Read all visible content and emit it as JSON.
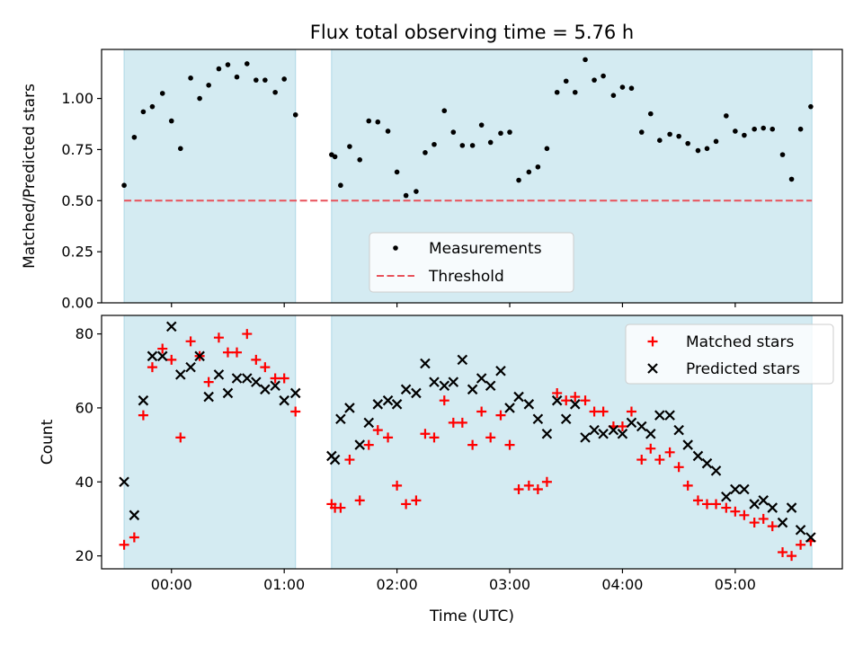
{
  "title": "Flux total observing time = 5.76 h",
  "colors": {
    "shade": "#add8e6",
    "threshold": "#e8515a",
    "matched": "#ff0000",
    "predicted": "#000000",
    "measurement": "#000000"
  },
  "x_axis": {
    "label": "Time (UTC)",
    "range_hours": [
      -0.62,
      5.95
    ],
    "ticks": [
      0,
      1,
      2,
      3,
      4,
      5
    ],
    "tick_labels": [
      "00:00",
      "01:00",
      "02:00",
      "03:00",
      "04:00",
      "05:00"
    ]
  },
  "shaded_intervals_hours": [
    [
      -0.42,
      1.1
    ],
    [
      1.42,
      5.68
    ]
  ],
  "chart_data": [
    {
      "type": "scatter",
      "title": "Flux total observing time = 5.76 h",
      "xlabel": "Time (UTC)",
      "ylabel": "Matched/Predicted stars",
      "ylim": [
        0,
        1.24
      ],
      "yticks": [
        0,
        0.25,
        0.5,
        0.75,
        1.0
      ],
      "ytick_labels": [
        "0.00",
        "0.25",
        "0.50",
        "0.75",
        "1.00"
      ],
      "grid": false,
      "legend": {
        "placement": "lower-center",
        "entries": [
          "Measurements",
          "Threshold"
        ]
      },
      "threshold": {
        "name": "Threshold",
        "value": 0.5,
        "style": "dashed"
      },
      "series": [
        {
          "name": "Measurements",
          "points": [
            [
              -0.42,
              0.575
            ],
            [
              -0.33,
              0.81
            ],
            [
              -0.25,
              0.935
            ],
            [
              -0.17,
              0.96
            ],
            [
              -0.08,
              1.025
            ],
            [
              0.0,
              0.89
            ],
            [
              0.08,
              0.755
            ],
            [
              0.17,
              1.1
            ],
            [
              0.25,
              1.0
            ],
            [
              0.33,
              1.065
            ],
            [
              0.42,
              1.145
            ],
            [
              0.5,
              1.165
            ],
            [
              0.58,
              1.105
            ],
            [
              0.67,
              1.17
            ],
            [
              0.75,
              1.09
            ],
            [
              0.83,
              1.09
            ],
            [
              0.92,
              1.03
            ],
            [
              1.0,
              1.095
            ],
            [
              1.1,
              0.92
            ],
            [
              1.42,
              0.725
            ],
            [
              1.45,
              0.715
            ],
            [
              1.5,
              0.575
            ],
            [
              1.58,
              0.765
            ],
            [
              1.67,
              0.7
            ],
            [
              1.75,
              0.89
            ],
            [
              1.83,
              0.885
            ],
            [
              1.92,
              0.84
            ],
            [
              2.0,
              0.64
            ],
            [
              2.08,
              0.525
            ],
            [
              2.17,
              0.545
            ],
            [
              2.25,
              0.735
            ],
            [
              2.33,
              0.775
            ],
            [
              2.42,
              0.94
            ],
            [
              2.5,
              0.835
            ],
            [
              2.58,
              0.77
            ],
            [
              2.67,
              0.77
            ],
            [
              2.75,
              0.87
            ],
            [
              2.83,
              0.785
            ],
            [
              2.92,
              0.83
            ],
            [
              3.0,
              0.835
            ],
            [
              3.08,
              0.6
            ],
            [
              3.17,
              0.64
            ],
            [
              3.25,
              0.665
            ],
            [
              3.33,
              0.755
            ],
            [
              3.42,
              1.03
            ],
            [
              3.5,
              1.085
            ],
            [
              3.58,
              1.03
            ],
            [
              3.67,
              1.19
            ],
            [
              3.75,
              1.09
            ],
            [
              3.83,
              1.11
            ],
            [
              3.92,
              1.015
            ],
            [
              4.0,
              1.055
            ],
            [
              4.08,
              1.05
            ],
            [
              4.17,
              0.835
            ],
            [
              4.25,
              0.925
            ],
            [
              4.33,
              0.795
            ],
            [
              4.42,
              0.825
            ],
            [
              4.5,
              0.815
            ],
            [
              4.58,
              0.78
            ],
            [
              4.67,
              0.745
            ],
            [
              4.75,
              0.755
            ],
            [
              4.83,
              0.79
            ],
            [
              4.92,
              0.915
            ],
            [
              5.0,
              0.84
            ],
            [
              5.08,
              0.82
            ],
            [
              5.17,
              0.85
            ],
            [
              5.25,
              0.855
            ],
            [
              5.33,
              0.85
            ],
            [
              5.42,
              0.725
            ],
            [
              5.5,
              0.605
            ],
            [
              5.58,
              0.85
            ],
            [
              5.67,
              0.96
            ]
          ]
        }
      ]
    },
    {
      "type": "scatter",
      "xlabel": "Time (UTC)",
      "ylabel": "Count",
      "ylim": [
        16.5,
        85
      ],
      "yticks": [
        20,
        40,
        60,
        80
      ],
      "ytick_labels": [
        "20",
        "40",
        "60",
        "80"
      ],
      "grid": false,
      "legend": {
        "placement": "top-right",
        "entries": [
          "Matched stars",
          "Predicted stars"
        ]
      },
      "series": [
        {
          "name": "Matched stars",
          "marker": "plus",
          "points": [
            [
              -0.42,
              23
            ],
            [
              -0.33,
              25
            ],
            [
              -0.25,
              58
            ],
            [
              -0.17,
              71
            ],
            [
              -0.08,
              76
            ],
            [
              0.0,
              73
            ],
            [
              0.08,
              52
            ],
            [
              0.17,
              78
            ],
            [
              0.25,
              74
            ],
            [
              0.33,
              67
            ],
            [
              0.42,
              79
            ],
            [
              0.5,
              75
            ],
            [
              0.58,
              75
            ],
            [
              0.67,
              80
            ],
            [
              0.75,
              73
            ],
            [
              0.83,
              71
            ],
            [
              0.92,
              68
            ],
            [
              1.0,
              68
            ],
            [
              1.1,
              59
            ],
            [
              1.42,
              34
            ],
            [
              1.45,
              33
            ],
            [
              1.5,
              33
            ],
            [
              1.58,
              46
            ],
            [
              1.67,
              35
            ],
            [
              1.75,
              50
            ],
            [
              1.83,
              54
            ],
            [
              1.92,
              52
            ],
            [
              2.0,
              39
            ],
            [
              2.08,
              34
            ],
            [
              2.17,
              35
            ],
            [
              2.25,
              53
            ],
            [
              2.33,
              52
            ],
            [
              2.42,
              62
            ],
            [
              2.5,
              56
            ],
            [
              2.58,
              56
            ],
            [
              2.67,
              50
            ],
            [
              2.75,
              59
            ],
            [
              2.83,
              52
            ],
            [
              2.92,
              58
            ],
            [
              3.0,
              50
            ],
            [
              3.08,
              38
            ],
            [
              3.17,
              39
            ],
            [
              3.25,
              38
            ],
            [
              3.33,
              40
            ],
            [
              3.42,
              64
            ],
            [
              3.5,
              62
            ],
            [
              3.58,
              63
            ],
            [
              3.67,
              62
            ],
            [
              3.75,
              59
            ],
            [
              3.83,
              59
            ],
            [
              3.92,
              55
            ],
            [
              4.0,
              55
            ],
            [
              4.08,
              59
            ],
            [
              4.17,
              46
            ],
            [
              4.25,
              49
            ],
            [
              4.33,
              46
            ],
            [
              4.42,
              48
            ],
            [
              4.5,
              44
            ],
            [
              4.58,
              39
            ],
            [
              4.67,
              35
            ],
            [
              4.75,
              34
            ],
            [
              4.83,
              34
            ],
            [
              4.92,
              33
            ],
            [
              5.0,
              32
            ],
            [
              5.08,
              31
            ],
            [
              5.17,
              29
            ],
            [
              5.25,
              30
            ],
            [
              5.33,
              28
            ],
            [
              5.42,
              21
            ],
            [
              5.5,
              20
            ],
            [
              5.58,
              23
            ],
            [
              5.67,
              24
            ]
          ]
        },
        {
          "name": "Predicted stars",
          "marker": "x",
          "points": [
            [
              -0.42,
              40
            ],
            [
              -0.33,
              31
            ],
            [
              -0.25,
              62
            ],
            [
              -0.17,
              74
            ],
            [
              -0.08,
              74
            ],
            [
              0.0,
              82
            ],
            [
              0.08,
              69
            ],
            [
              0.17,
              71
            ],
            [
              0.25,
              74
            ],
            [
              0.33,
              63
            ],
            [
              0.42,
              69
            ],
            [
              0.5,
              64
            ],
            [
              0.58,
              68
            ],
            [
              0.67,
              68
            ],
            [
              0.75,
              67
            ],
            [
              0.83,
              65
            ],
            [
              0.92,
              66
            ],
            [
              1.0,
              62
            ],
            [
              1.1,
              64
            ],
            [
              1.42,
              47
            ],
            [
              1.45,
              46
            ],
            [
              1.5,
              57
            ],
            [
              1.58,
              60
            ],
            [
              1.67,
              50
            ],
            [
              1.75,
              56
            ],
            [
              1.83,
              61
            ],
            [
              1.92,
              62
            ],
            [
              2.0,
              61
            ],
            [
              2.08,
              65
            ],
            [
              2.17,
              64
            ],
            [
              2.25,
              72
            ],
            [
              2.33,
              67
            ],
            [
              2.42,
              66
            ],
            [
              2.5,
              67
            ],
            [
              2.58,
              73
            ],
            [
              2.67,
              65
            ],
            [
              2.75,
              68
            ],
            [
              2.83,
              66
            ],
            [
              2.92,
              70
            ],
            [
              3.0,
              60
            ],
            [
              3.08,
              63
            ],
            [
              3.17,
              61
            ],
            [
              3.25,
              57
            ],
            [
              3.33,
              53
            ],
            [
              3.42,
              62
            ],
            [
              3.5,
              57
            ],
            [
              3.58,
              61
            ],
            [
              3.67,
              52
            ],
            [
              3.75,
              54
            ],
            [
              3.83,
              53
            ],
            [
              3.92,
              54
            ],
            [
              4.0,
              53
            ],
            [
              4.08,
              56
            ],
            [
              4.17,
              55
            ],
            [
              4.25,
              53
            ],
            [
              4.33,
              58
            ],
            [
              4.42,
              58
            ],
            [
              4.5,
              54
            ],
            [
              4.58,
              50
            ],
            [
              4.67,
              47
            ],
            [
              4.75,
              45
            ],
            [
              4.83,
              43
            ],
            [
              4.92,
              36
            ],
            [
              5.0,
              38
            ],
            [
              5.08,
              38
            ],
            [
              5.17,
              34
            ],
            [
              5.25,
              35
            ],
            [
              5.33,
              33
            ],
            [
              5.42,
              29
            ],
            [
              5.5,
              33
            ],
            [
              5.58,
              27
            ],
            [
              5.67,
              25
            ]
          ]
        }
      ]
    }
  ]
}
